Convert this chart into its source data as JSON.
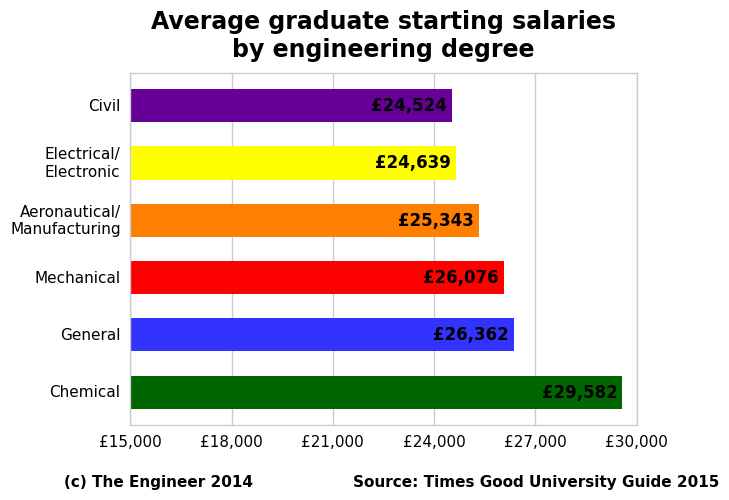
{
  "title": "Average graduate starting salaries\nby engineering degree",
  "categories": [
    "Chemical",
    "General",
    "Mechanical",
    "Aeronautical/\nManufacturing",
    "Electrical/\nElectronic",
    "Civil"
  ],
  "values": [
    29582,
    26362,
    26076,
    25343,
    24639,
    24524
  ],
  "bar_colors": [
    "#006600",
    "#3333FF",
    "#FF0000",
    "#FF8000",
    "#FFFF00",
    "#660099"
  ],
  "bar_labels": [
    "£29,582",
    "£26,362",
    "£26,076",
    "£25,343",
    "£24,639",
    "£24,524"
  ],
  "xlim": [
    15000,
    30000
  ],
  "xticks": [
    15000,
    18000,
    21000,
    24000,
    27000,
    30000
  ],
  "xtick_labels": [
    "£15,000",
    "£18,000",
    "£21,000",
    "£24,000",
    "£27,000",
    "£30,000"
  ],
  "footer_left": "(c) The Engineer 2014",
  "footer_right": "Source: Times Good University Guide 2015",
  "background_color": "#ffffff",
  "title_fontsize": 17,
  "label_fontsize": 11,
  "tick_fontsize": 11,
  "bar_label_fontsize": 12,
  "footer_fontsize": 11
}
